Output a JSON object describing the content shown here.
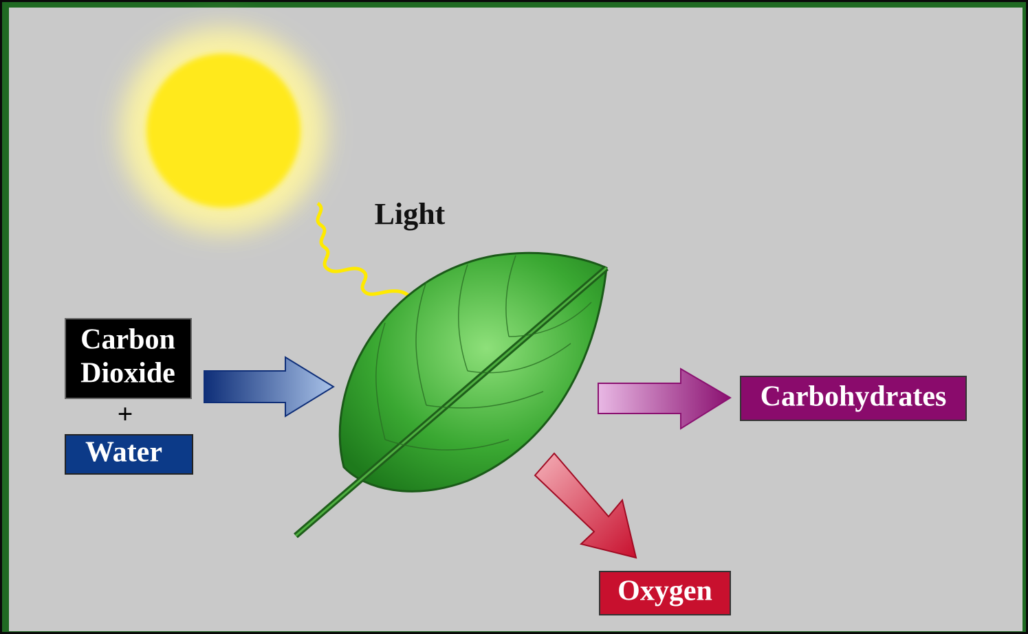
{
  "labels": {
    "light": "Light",
    "carbon_dioxide": [
      "Carbon",
      "Dioxide"
    ],
    "plus": "+",
    "water": "Water",
    "carbohydrates": "Carbohydrates",
    "oxygen": "Oxygen"
  }
}
